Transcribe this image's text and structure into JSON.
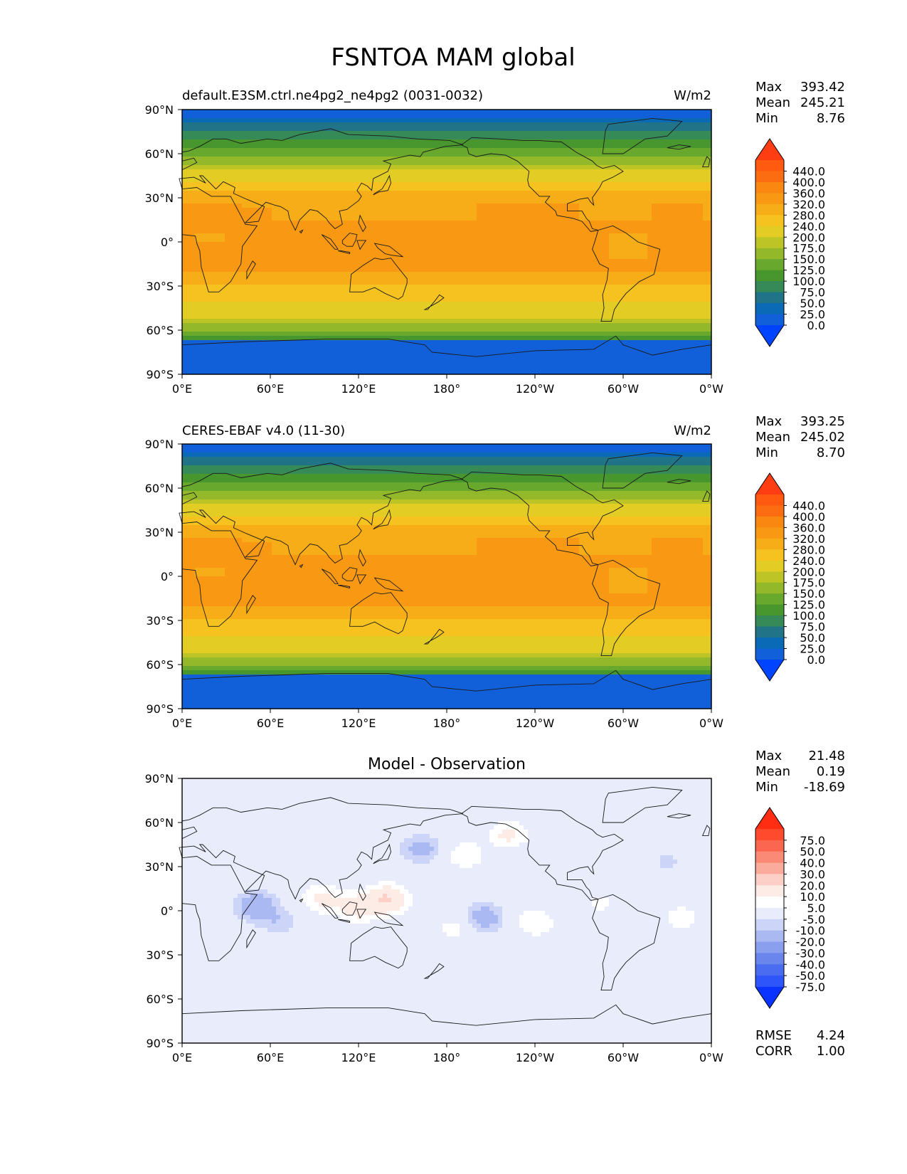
{
  "figure_title": "FSNTOA MAM global",
  "chart_data": [
    {
      "type": "heatmap",
      "title": "default.E3SM.ctrl.ne4pg2_ne4pg2 (0031-0032)",
      "units": "W/m2",
      "stats": [
        {
          "label": "Max",
          "value": "393.42"
        },
        {
          "label": "Mean",
          "value": "245.21"
        },
        {
          "label": "Min",
          "value": "8.76"
        }
      ],
      "colorbar_levels": [
        "440.0",
        "400.0",
        "360.0",
        "320.0",
        "280.0",
        "240.0",
        "200.0",
        "175.0",
        "150.0",
        "125.0",
        "100.0",
        "75.0",
        "50.0",
        "25.0",
        "0.0"
      ],
      "colorbar_colors": [
        "#ff3d12",
        "#ff5a10",
        "#fb6d10",
        "#f98710",
        "#f99913",
        "#f7ad18",
        "#f5c21f",
        "#e3cd24",
        "#bdc526",
        "#93b82a",
        "#68a82c",
        "#47962e",
        "#358a57",
        "#217488",
        "#0b6ab6",
        "#1160d9",
        "#0044ff"
      ],
      "x_ticks": [
        "0°E",
        "60°E",
        "120°E",
        "180°",
        "120°W",
        "60°W",
        "0°W"
      ],
      "y_ticks": [
        "90°N",
        "60°N",
        "30°N",
        "0°",
        "30°S",
        "60°S",
        "90°S"
      ],
      "xlim": [
        0,
        360
      ],
      "ylim": [
        -90,
        90
      ],
      "field": "fsnt"
    },
    {
      "type": "heatmap",
      "title": "CERES-EBAF v4.0 (11-30)",
      "units": "W/m2",
      "stats": [
        {
          "label": "Max",
          "value": "393.25"
        },
        {
          "label": "Mean",
          "value": "245.02"
        },
        {
          "label": "Min",
          "value": "8.70"
        }
      ],
      "colorbar_levels": [
        "440.0",
        "400.0",
        "360.0",
        "320.0",
        "280.0",
        "240.0",
        "200.0",
        "175.0",
        "150.0",
        "125.0",
        "100.0",
        "75.0",
        "50.0",
        "25.0",
        "0.0"
      ],
      "colorbar_colors": [
        "#ff3d12",
        "#ff5a10",
        "#fb6d10",
        "#f98710",
        "#f99913",
        "#f7ad18",
        "#f5c21f",
        "#e3cd24",
        "#bdc526",
        "#93b82a",
        "#68a82c",
        "#47962e",
        "#358a57",
        "#217488",
        "#0b6ab6",
        "#1160d9",
        "#0044ff"
      ],
      "x_ticks": [
        "0°E",
        "60°E",
        "120°E",
        "180°",
        "120°W",
        "60°W",
        "0°W"
      ],
      "y_ticks": [
        "90°N",
        "60°N",
        "30°N",
        "0°",
        "30°S",
        "60°S",
        "90°S"
      ],
      "xlim": [
        0,
        360
      ],
      "ylim": [
        -90,
        90
      ],
      "field": "fsnt"
    },
    {
      "type": "heatmap",
      "title": "Model - Observation",
      "units": "",
      "stats": [
        {
          "label": "Max",
          "value": "21.48"
        },
        {
          "label": "Mean",
          "value": "0.19"
        },
        {
          "label": "Min",
          "value": "-18.69"
        }
      ],
      "colorbar_levels": [
        "75.0",
        "50.0",
        "40.0",
        "30.0",
        "20.0",
        "10.0",
        "5.0",
        "-5.0",
        "-10.0",
        "-20.0",
        "-30.0",
        "-40.0",
        "-50.0",
        "-75.0"
      ],
      "colorbar_colors": [
        "#ff2d12",
        "#ff4a2e",
        "#fa6650",
        "#fa8a76",
        "#fbab9c",
        "#fcd0c6",
        "#fdebe6",
        "#ffffff",
        "#e8ecfb",
        "#ccd5f7",
        "#aab9f2",
        "#8aa0ee",
        "#6a86ec",
        "#4a6cf0",
        "#2e55fa",
        "#0a33ff"
      ],
      "x_ticks": [
        "0°E",
        "60°E",
        "120°E",
        "180°",
        "120°W",
        "60°W",
        "0°W"
      ],
      "y_ticks": [
        "90°N",
        "60°N",
        "30°N",
        "0°",
        "30°S",
        "60°S",
        "90°S"
      ],
      "xlim": [
        0,
        360
      ],
      "ylim": [
        -90,
        90
      ],
      "field": "diff",
      "anomalies": [
        {
          "lon": 50,
          "lat": 3,
          "value": -18
        },
        {
          "lon": 67,
          "lat": -8,
          "value": -8
        },
        {
          "lon": 95,
          "lat": 8,
          "value": 12
        },
        {
          "lon": 140,
          "lat": 8,
          "value": 20
        },
        {
          "lon": 120,
          "lat": 2,
          "value": 14
        },
        {
          "lon": 163,
          "lat": 42,
          "value": -14
        },
        {
          "lon": 192,
          "lat": 38,
          "value": 10
        },
        {
          "lon": 222,
          "lat": 52,
          "value": 12
        },
        {
          "lon": 205,
          "lat": -5,
          "value": -16
        },
        {
          "lon": 240,
          "lat": -8,
          "value": 10
        },
        {
          "lon": 187,
          "lat": -12,
          "value": 8
        },
        {
          "lon": 285,
          "lat": 5,
          "value": 6
        },
        {
          "lon": 340,
          "lat": -5,
          "value": 8
        },
        {
          "lon": 330,
          "lat": 33,
          "value": -6
        }
      ],
      "rmse": {
        "label": "RMSE",
        "value": "4.24"
      },
      "corr": {
        "label": "CORR",
        "value": "1.00"
      }
    }
  ]
}
